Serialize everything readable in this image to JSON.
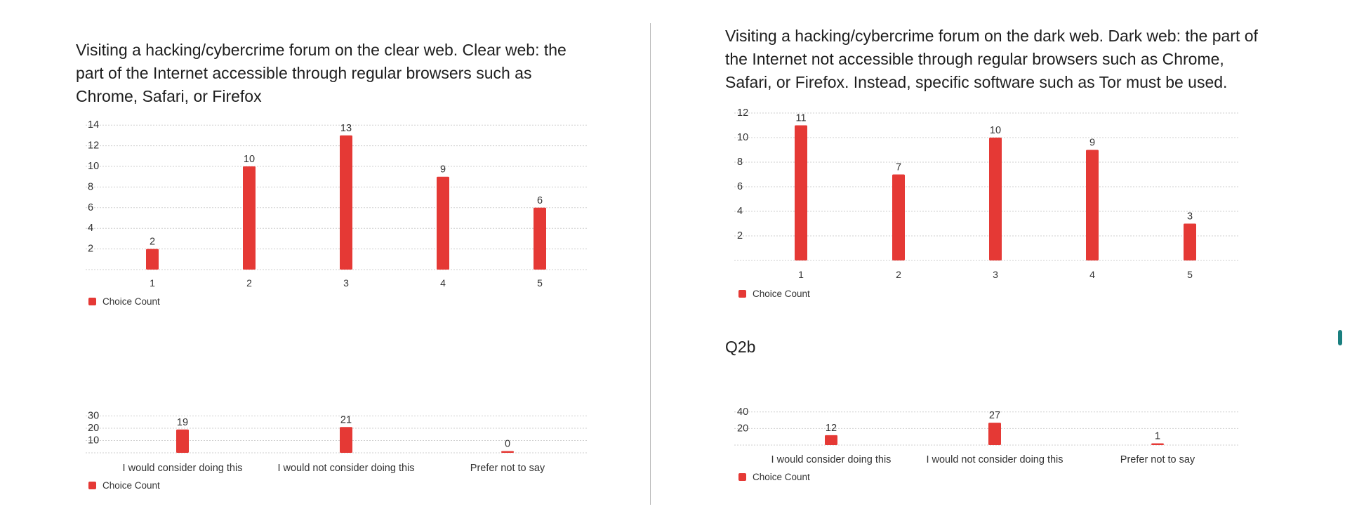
{
  "panels": {
    "left": {
      "heading": "Visiting a hacking/cybercrime forum on the clear web. Clear web: the part of the Internet accessible through regular browsers such as Chrome, Safari, or Firefox"
    },
    "right": {
      "heading": "Visiting a hacking/cybercrime forum on the dark web. Dark web: the part of the Internet not accessible through regular browsers such as Chrome, Safari, or Firefox. Instead, specific software such as Tor must be used.",
      "q2b_label": "Q2b"
    }
  },
  "colors": {
    "bar": "#e53935",
    "grid": "#cfcfcf",
    "text": "#333333"
  },
  "chart_data": [
    {
      "type": "bar",
      "categories": [
        "1",
        "2",
        "3",
        "4",
        "5"
      ],
      "series": [
        {
          "name": "Choice Count",
          "values": [
            2,
            10,
            13,
            9,
            6
          ]
        }
      ],
      "yticks": [
        2,
        4,
        6,
        8,
        10,
        12,
        14
      ],
      "ylim": [
        0,
        15
      ],
      "grid": true,
      "legend": "bottom-left"
    },
    {
      "type": "bar",
      "categories": [
        "1",
        "2",
        "3",
        "4",
        "5"
      ],
      "series": [
        {
          "name": "Choice Count",
          "values": [
            11,
            7,
            10,
            9,
            3
          ]
        }
      ],
      "yticks": [
        2,
        4,
        6,
        8,
        10,
        12
      ],
      "ylim": [
        0,
        12
      ],
      "grid": true,
      "legend": "bottom-left"
    },
    {
      "type": "bar",
      "categories": [
        "I would consider doing this",
        "I would not consider doing this",
        "Prefer not to say"
      ],
      "series": [
        {
          "name": "Choice Count",
          "values": [
            19,
            21,
            0
          ]
        }
      ],
      "yticks": [
        10,
        20,
        30
      ],
      "ylim": [
        0,
        30
      ],
      "grid": true,
      "legend": "bottom-left"
    },
    {
      "type": "bar",
      "categories": [
        "I would consider doing this",
        "I would not consider doing this",
        "Prefer not to say"
      ],
      "series": [
        {
          "name": "Choice Count",
          "values": [
            12,
            27,
            1
          ]
        }
      ],
      "yticks": [
        20,
        40
      ],
      "ylim": [
        0,
        40
      ],
      "grid": true,
      "legend": "bottom-left"
    }
  ]
}
